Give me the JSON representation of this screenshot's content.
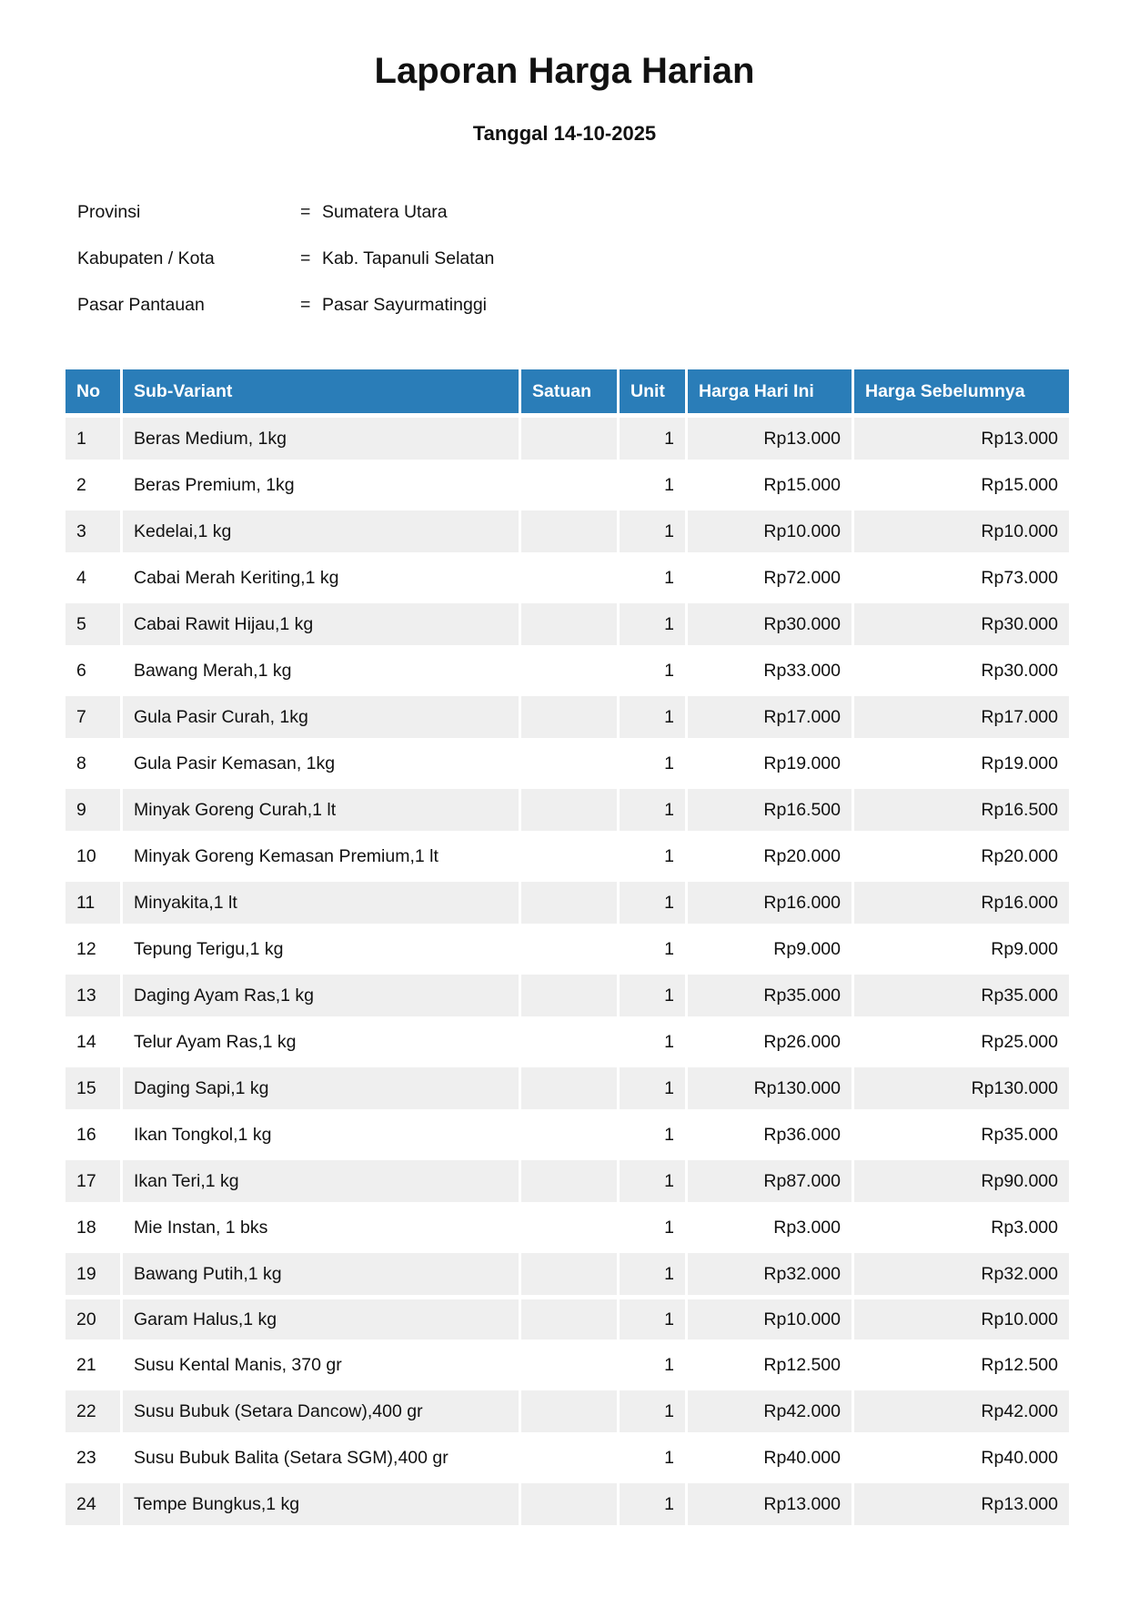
{
  "title": "Laporan Harga Harian",
  "subtitle": "Tanggal 14-10-2025",
  "info": [
    {
      "label": "Provinsi",
      "sep": "=",
      "value": "Sumatera Utara"
    },
    {
      "label": "Kabupaten / Kota",
      "sep": "=",
      "value": "Kab. Tapanuli Selatan"
    },
    {
      "label": "Pasar Pantauan",
      "sep": "=",
      "value": "Pasar Sayurmatinggi"
    }
  ],
  "header_color": "#2a7db8",
  "table": {
    "headers": [
      "No",
      "Sub-Variant",
      "Satuan",
      "Unit",
      "Harga Hari Ini",
      "Harga Sebelumnya"
    ],
    "rows": [
      {
        "no": "1",
        "name": "Beras Medium, 1kg",
        "satuan": "",
        "unit": "1",
        "today": "Rp13.000",
        "prev": "Rp13.000"
      },
      {
        "no": "2",
        "name": "Beras Premium, 1kg",
        "satuan": "",
        "unit": "1",
        "today": "Rp15.000",
        "prev": "Rp15.000"
      },
      {
        "no": "3",
        "name": "Kedelai,1 kg",
        "satuan": "",
        "unit": "1",
        "today": "Rp10.000",
        "prev": "Rp10.000"
      },
      {
        "no": "4",
        "name": "Cabai Merah Keriting,1 kg",
        "satuan": "",
        "unit": "1",
        "today": "Rp72.000",
        "prev": "Rp73.000"
      },
      {
        "no": "5",
        "name": "Cabai Rawit Hijau,1 kg",
        "satuan": "",
        "unit": "1",
        "today": "Rp30.000",
        "prev": "Rp30.000"
      },
      {
        "no": "6",
        "name": "Bawang Merah,1 kg",
        "satuan": "",
        "unit": "1",
        "today": "Rp33.000",
        "prev": "Rp30.000"
      },
      {
        "no": "7",
        "name": "Gula Pasir Curah, 1kg",
        "satuan": "",
        "unit": "1",
        "today": "Rp17.000",
        "prev": "Rp17.000"
      },
      {
        "no": "8",
        "name": "Gula Pasir Kemasan, 1kg",
        "satuan": "",
        "unit": "1",
        "today": "Rp19.000",
        "prev": "Rp19.000"
      },
      {
        "no": "9",
        "name": "Minyak Goreng Curah,1 lt",
        "satuan": "",
        "unit": "1",
        "today": "Rp16.500",
        "prev": "Rp16.500"
      },
      {
        "no": "10",
        "name": "Minyak Goreng Kemasan Premium,1 lt",
        "satuan": "",
        "unit": "1",
        "today": "Rp20.000",
        "prev": "Rp20.000"
      },
      {
        "no": "11",
        "name": "Minyakita,1 lt",
        "satuan": "",
        "unit": "1",
        "today": "Rp16.000",
        "prev": "Rp16.000"
      },
      {
        "no": "12",
        "name": "Tepung Terigu,1 kg",
        "satuan": "",
        "unit": "1",
        "today": "Rp9.000",
        "prev": "Rp9.000"
      },
      {
        "no": "13",
        "name": "Daging Ayam Ras,1 kg",
        "satuan": "",
        "unit": "1",
        "today": "Rp35.000",
        "prev": "Rp35.000"
      },
      {
        "no": "14",
        "name": "Telur Ayam Ras,1 kg",
        "satuan": "",
        "unit": "1",
        "today": "Rp26.000",
        "prev": "Rp25.000"
      },
      {
        "no": "15",
        "name": "Daging Sapi,1 kg",
        "satuan": "",
        "unit": "1",
        "today": "Rp130.000",
        "prev": "Rp130.000"
      },
      {
        "no": "16",
        "name": "Ikan Tongkol,1 kg",
        "satuan": "",
        "unit": "1",
        "today": "Rp36.000",
        "prev": "Rp35.000"
      },
      {
        "no": "17",
        "name": "Ikan Teri,1 kg",
        "satuan": "",
        "unit": "1",
        "today": "Rp87.000",
        "prev": "Rp90.000"
      },
      {
        "no": "18",
        "name": "Mie Instan, 1 bks",
        "satuan": "",
        "unit": "1",
        "today": "Rp3.000",
        "prev": "Rp3.000"
      },
      {
        "no": "19",
        "name": "Bawang Putih,1 kg",
        "satuan": "",
        "unit": "1",
        "today": "Rp32.000",
        "prev": "Rp32.000"
      },
      {
        "no": "20",
        "name": "Garam Halus,1 kg",
        "satuan": "",
        "unit": "1",
        "today": "Rp10.000",
        "prev": "Rp10.000"
      },
      {
        "no": "21",
        "name": "Susu Kental Manis, 370 gr",
        "satuan": "",
        "unit": "1",
        "today": "Rp12.500",
        "prev": "Rp12.500"
      },
      {
        "no": "22",
        "name": "Susu Bubuk (Setara Dancow),400 gr",
        "satuan": "",
        "unit": "1",
        "today": "Rp42.000",
        "prev": "Rp42.000"
      },
      {
        "no": "23",
        "name": "Susu Bubuk Balita (Setara SGM),400 gr",
        "satuan": "",
        "unit": "1",
        "today": "Rp40.000",
        "prev": "Rp40.000"
      },
      {
        "no": "24",
        "name": "Tempe Bungkus,1 kg",
        "satuan": "",
        "unit": "1",
        "today": "Rp13.000",
        "prev": "Rp13.000"
      }
    ]
  }
}
